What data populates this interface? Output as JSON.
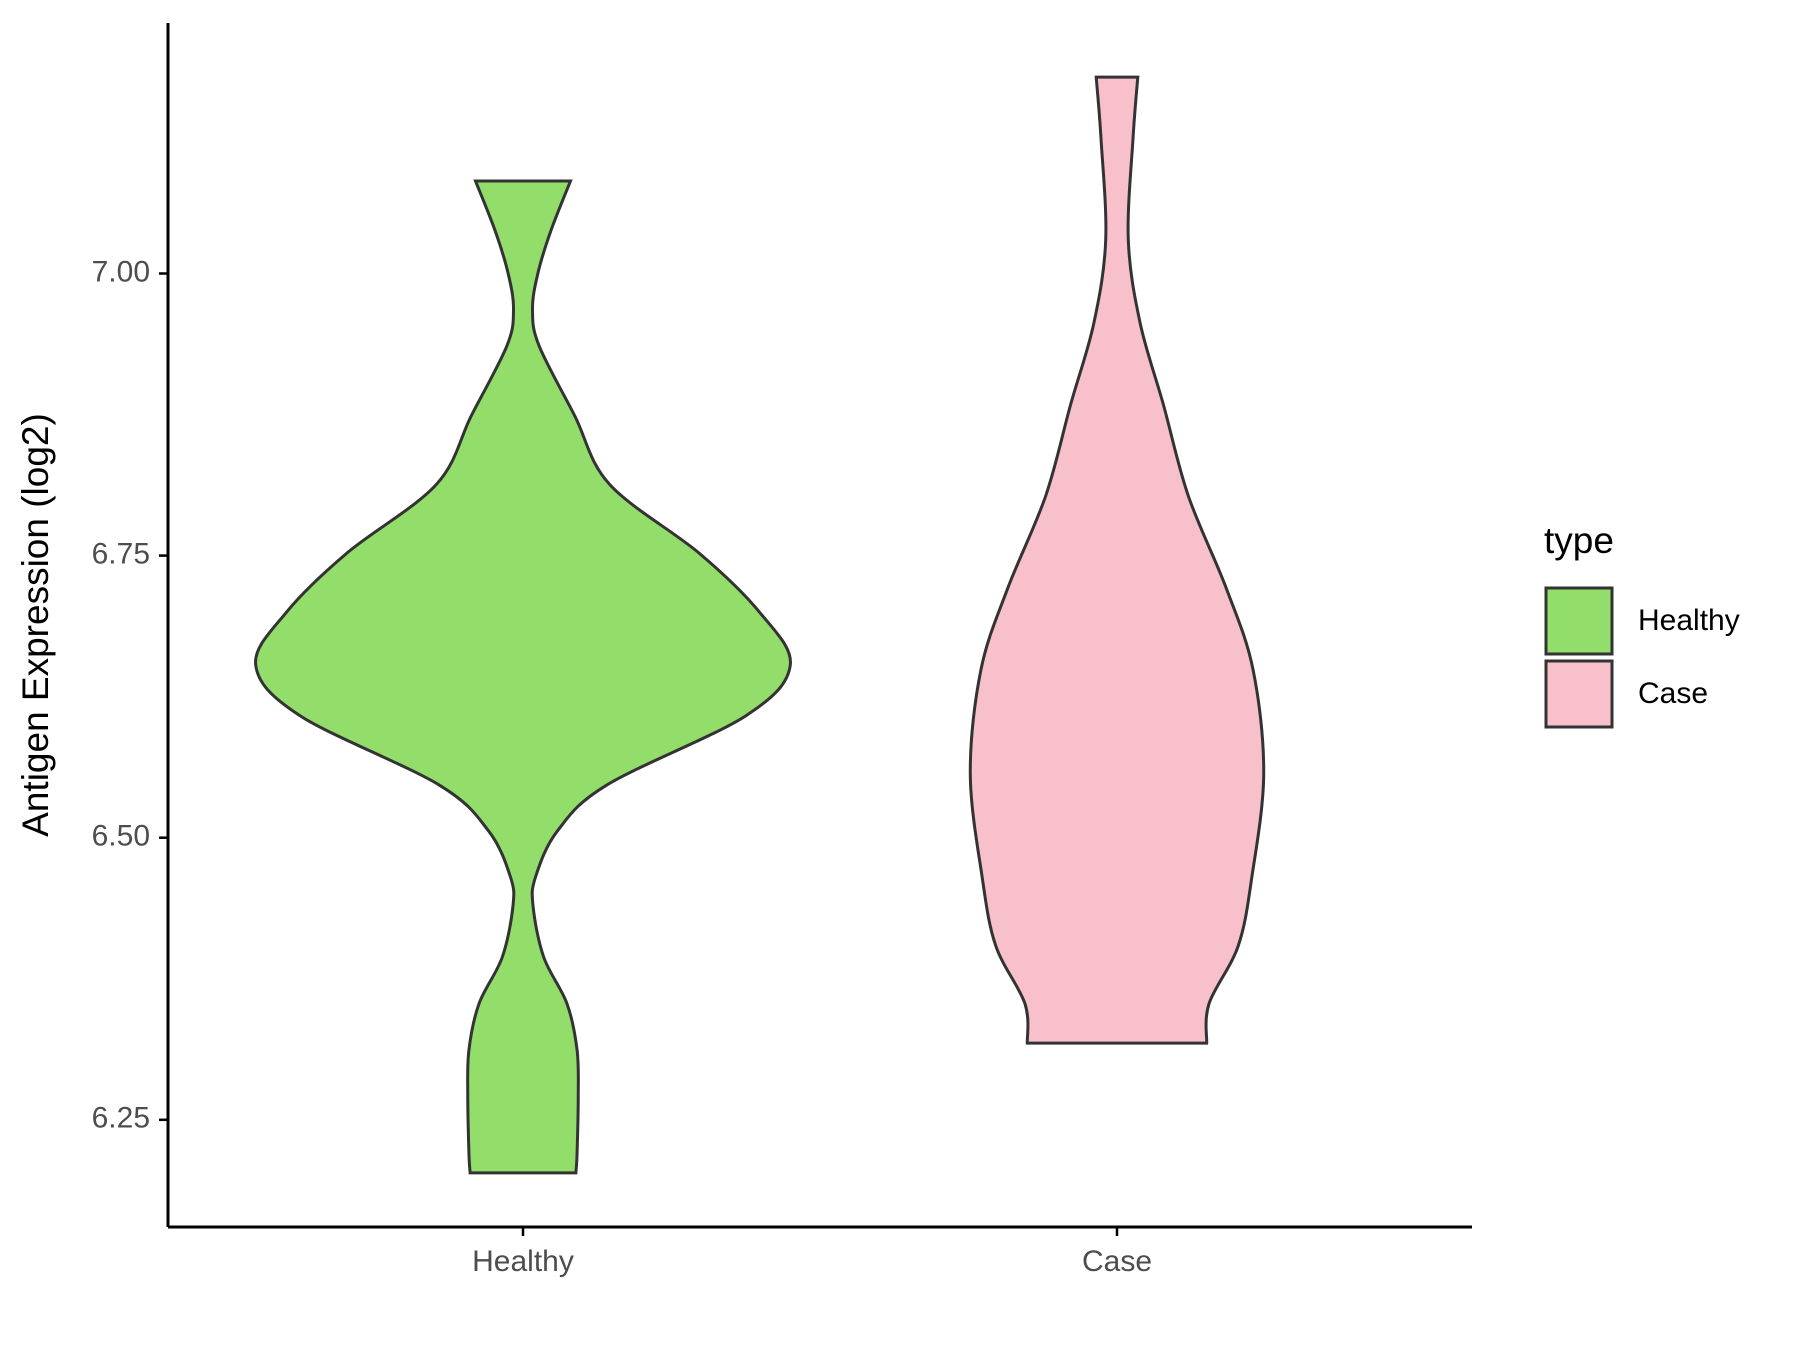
{
  "chart_data": {
    "type": "violin",
    "y_label": "Antigen Expression (log2)",
    "categories": [
      "Healthy",
      "Case"
    ],
    "series": [
      {
        "name": "Healthy",
        "color": "#93dd6b",
        "y": [
          7.082,
          7.038,
          7.0,
          6.968,
          6.936,
          6.874,
          6.813,
          6.752,
          6.7,
          6.653,
          6.608,
          6.547,
          6.506,
          6.465,
          6.439,
          6.394,
          6.353,
          6.312,
          6.271,
          6.22,
          6.203
        ],
        "width": [
          0.08,
          0.047,
          0.025,
          0.016,
          0.027,
          0.087,
          0.146,
          0.297,
          0.398,
          0.45,
          0.375,
          0.142,
          0.058,
          0.021,
          0.017,
          0.035,
          0.074,
          0.091,
          0.093,
          0.091,
          0.089
        ]
      },
      {
        "name": "Case",
        "color": "#f7c0cb",
        "y": [
          7.174,
          7.12,
          7.03,
          6.956,
          6.884,
          6.803,
          6.721,
          6.649,
          6.557,
          6.465,
          6.404,
          6.353,
          6.318
        ],
        "width": [
          0.035,
          0.027,
          0.019,
          0.039,
          0.078,
          0.12,
          0.184,
          0.229,
          0.247,
          0.227,
          0.204,
          0.155,
          0.151
        ]
      }
    ],
    "ylim": [
      6.155,
      7.222
    ],
    "yticks": [
      {
        "value": 6.25,
        "label": "6.25"
      },
      {
        "value": 6.5,
        "label": "6.50"
      },
      {
        "value": 6.75,
        "label": "6.75"
      },
      {
        "value": 7,
        "label": "7.00"
      }
    ],
    "legend_title": "type",
    "legend_position": "right",
    "grid": false
  }
}
